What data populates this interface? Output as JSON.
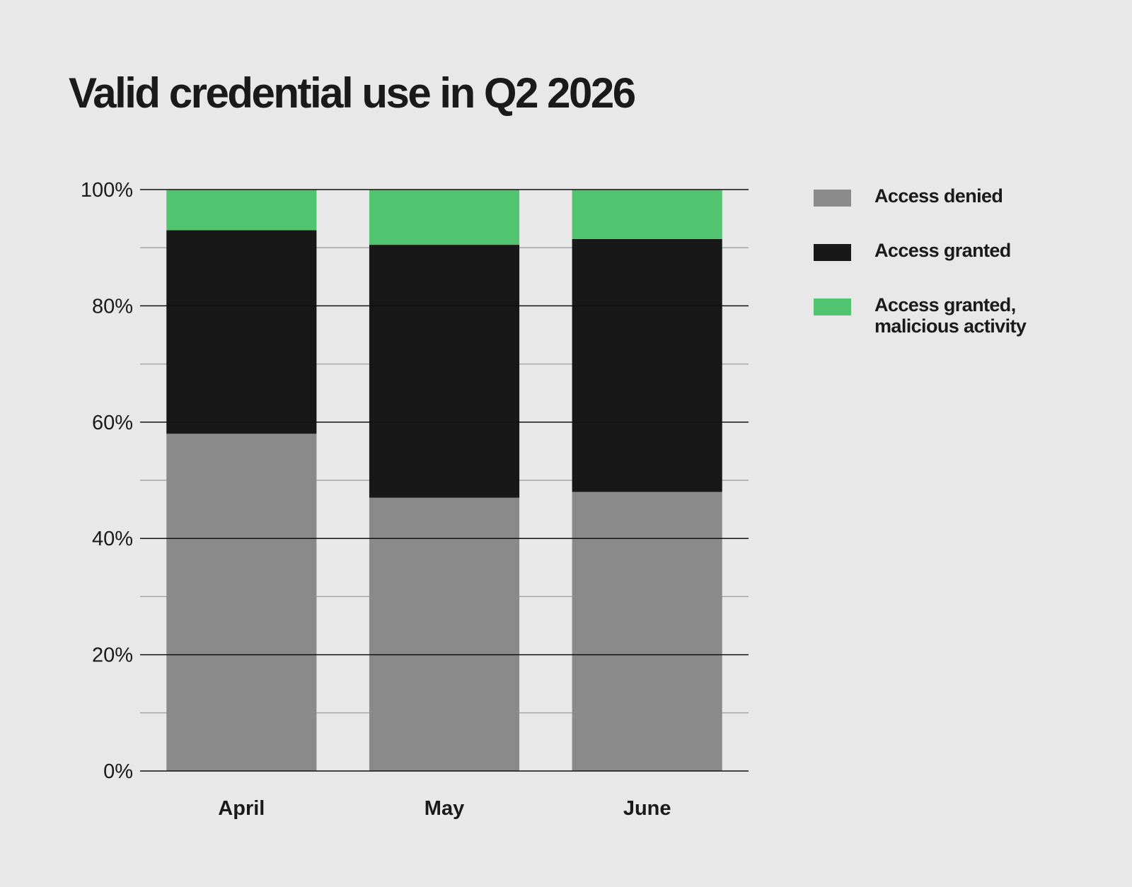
{
  "chart_data": {
    "type": "bar",
    "stacked": true,
    "title": "Valid credential use in Q2 2026",
    "xlabel": "",
    "ylabel": "",
    "categories": [
      "April",
      "May",
      "June"
    ],
    "series": [
      {
        "name": "Access denied",
        "values": [
          58,
          47,
          48
        ],
        "color": "#8a8a8a"
      },
      {
        "name": "Access granted",
        "values": [
          35,
          43.5,
          43.5
        ],
        "color": "#181818"
      },
      {
        "name": "Access granted, malicious activity",
        "values": [
          7,
          9.5,
          8.5
        ],
        "color": "#52c46f"
      }
    ],
    "ylim": [
      0,
      100
    ],
    "yticks": [
      0,
      20,
      40,
      60,
      80,
      100
    ],
    "ytick_labels": [
      "0%",
      "20%",
      "40%",
      "60%",
      "80%",
      "100%"
    ],
    "grid": true,
    "legend_position": "right"
  }
}
